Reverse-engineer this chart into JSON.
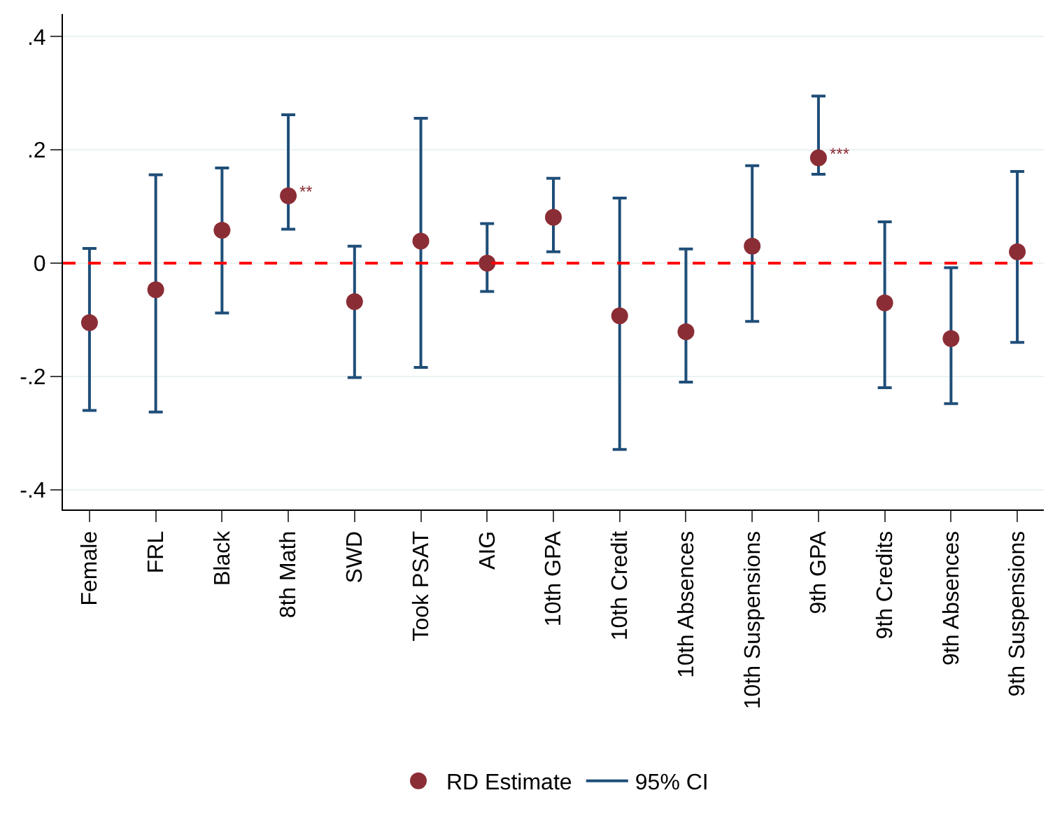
{
  "chart_data": {
    "type": "scatter",
    "categories": [
      "Female",
      "FRL",
      "Black",
      "8th Math",
      "SWD",
      "Took PSAT",
      "AIG",
      "10th GPA",
      "10th Credit",
      "10th Absences",
      "10th Suspensions",
      "9th GPA",
      "9th Credits",
      "9th Absences",
      "9th Suspensions"
    ],
    "series": [
      {
        "name": "RD Estimate",
        "color": "#8b2d35",
        "marker": "circle",
        "values": [
          -0.105,
          -0.047,
          0.058,
          0.119,
          -0.068,
          0.039,
          0,
          0.081,
          -0.093,
          -0.121,
          0.03,
          0.186,
          -0.07,
          -0.133,
          0.02
        ],
        "errors": [
          [
            -0.26,
            0.026
          ],
          [
            -0.263,
            0.156
          ],
          [
            -0.088,
            0.168
          ],
          [
            0.06,
            0.262
          ],
          [
            -0.202,
            0.03
          ],
          [
            -0.184,
            0.256
          ],
          [
            -0.05,
            0.07
          ],
          [
            0.02,
            0.15
          ],
          [
            -0.329,
            0.115
          ],
          [
            -0.21,
            0.025
          ],
          [
            -0.103,
            0.172
          ],
          [
            0.157,
            0.295
          ],
          [
            -0.22,
            0.073
          ],
          [
            -0.248,
            -0.008
          ],
          [
            -0.14,
            0.162
          ]
        ]
      },
      {
        "name": "95% CI",
        "color": "#1f4e79",
        "marker": "none",
        "values": [
          null,
          null,
          null,
          null,
          null,
          null,
          null,
          null,
          null,
          null,
          null,
          null,
          null,
          null,
          null
        ]
      }
    ],
    "ylim": [
      -0.435,
      0.44
    ],
    "yticks": [
      {
        "value": -0.4,
        "label": "-.4"
      },
      {
        "value": -0.2,
        "label": "-.2"
      },
      0,
      {
        "value": 0.2,
        "label": ".2"
      },
      {
        "value": 0.4,
        "label": ".4"
      }
    ],
    "grid": "y",
    "legend": "bottom",
    "ref_lines": [
      {
        "axis": "y",
        "value": 0,
        "color": "#ff0000",
        "line_style": "dashed"
      }
    ],
    "annotations": [
      {
        "text": "**",
        "x": "8th Math",
        "y": 0.119
      },
      {
        "text": "***",
        "x": "9th GPA",
        "y": 0.186
      }
    ]
  }
}
